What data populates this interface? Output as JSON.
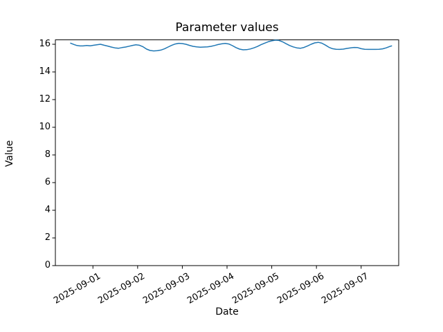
{
  "figure": {
    "background": "#ffffff"
  },
  "chart_data": {
    "type": "line",
    "title": "Parameter values",
    "xlabel": "Date",
    "ylabel": "Value",
    "legend": "off",
    "grid": "off",
    "line_color": "#1f77b4",
    "axis_color": "#000000",
    "ylim": [
      0,
      16.32
    ],
    "xlim_days": [
      -0.84,
      6.84
    ],
    "y_ticks": [
      0,
      2,
      4,
      6,
      8,
      10,
      12,
      14,
      16
    ],
    "x_tick_days": [
      0,
      1,
      2,
      3,
      4,
      5,
      6
    ],
    "x_tick_labels": [
      "2025-09-01",
      "2025-09-02",
      "2025-09-03",
      "2025-09-04",
      "2025-09-05",
      "2025-09-06",
      "2025-09-07"
    ],
    "series": [
      {
        "name": "parameter",
        "x_days": [
          -0.5,
          -0.42,
          -0.37,
          -0.29,
          -0.22,
          -0.14,
          -0.06,
          0.02,
          0.1,
          0.17,
          0.25,
          0.33,
          0.41,
          0.49,
          0.57,
          0.65,
          0.73,
          0.81,
          0.89,
          0.96,
          1.04,
          1.12,
          1.2,
          1.28,
          1.36,
          1.44,
          1.52,
          1.6,
          1.68,
          1.76,
          1.84,
          1.92,
          2.0,
          2.08,
          2.16,
          2.24,
          2.32,
          2.4,
          2.48,
          2.56,
          2.64,
          2.72,
          2.8,
          2.88,
          2.96,
          3.04,
          3.12,
          3.2,
          3.28,
          3.36,
          3.44,
          3.52,
          3.6,
          3.68,
          3.76,
          3.84,
          3.92,
          4.0,
          4.08,
          4.16,
          4.24,
          4.32,
          4.4,
          4.48,
          4.56,
          4.64,
          4.72,
          4.8,
          4.88,
          4.96,
          5.04,
          5.12,
          5.2,
          5.28,
          5.36,
          5.44,
          5.52,
          5.6,
          5.68,
          5.76,
          5.84,
          5.92,
          6.0,
          6.08,
          6.16,
          6.24,
          6.32,
          6.4,
          6.48,
          6.56,
          6.64,
          6.68
        ],
        "values": [
          16.08,
          15.98,
          15.92,
          15.88,
          15.88,
          15.91,
          15.89,
          15.93,
          15.97,
          16.0,
          15.93,
          15.87,
          15.8,
          15.74,
          15.71,
          15.76,
          15.8,
          15.86,
          15.92,
          15.96,
          15.93,
          15.82,
          15.65,
          15.55,
          15.52,
          15.54,
          15.58,
          15.67,
          15.8,
          15.92,
          16.02,
          16.07,
          16.05,
          16.0,
          15.92,
          15.85,
          15.81,
          15.79,
          15.8,
          15.81,
          15.85,
          15.91,
          15.98,
          16.03,
          16.06,
          16.02,
          15.9,
          15.76,
          15.65,
          15.6,
          15.61,
          15.66,
          15.74,
          15.84,
          15.97,
          16.08,
          16.18,
          16.25,
          16.3,
          16.28,
          16.18,
          16.04,
          15.91,
          15.81,
          15.74,
          15.71,
          15.77,
          15.88,
          16.0,
          16.1,
          16.14,
          16.08,
          15.94,
          15.78,
          15.68,
          15.64,
          15.63,
          15.65,
          15.7,
          15.74,
          15.77,
          15.76,
          15.68,
          15.64,
          15.63,
          15.63,
          15.63,
          15.64,
          15.67,
          15.74,
          15.84,
          15.88
        ]
      }
    ]
  }
}
